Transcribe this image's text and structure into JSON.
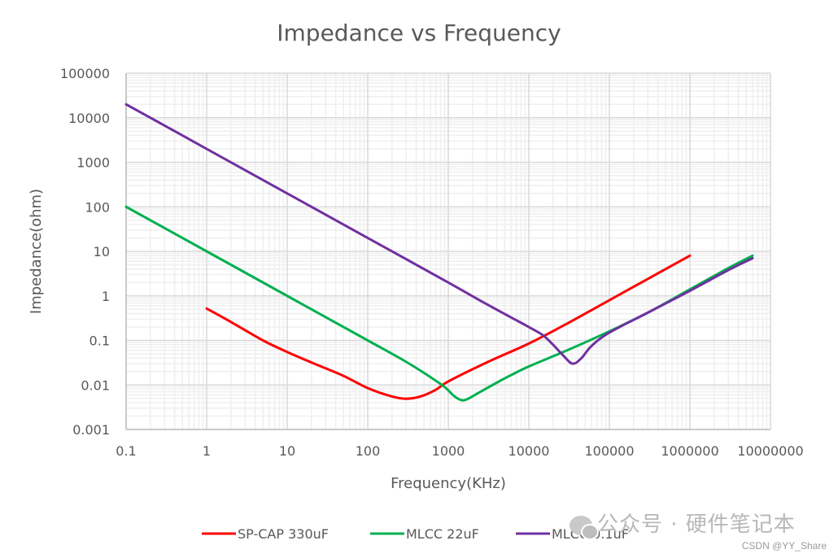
{
  "chart_data": {
    "type": "line",
    "title": "Impedance vs Frequency",
    "xlabel": "Frequency(KHz)",
    "ylabel": "Impedance(ohm)",
    "xscale": "log",
    "yscale": "log",
    "xlim": [
      0.1,
      10000000
    ],
    "ylim": [
      0.001,
      100000
    ],
    "x_ticks": [
      "0.1",
      "1",
      "10",
      "100",
      "1000",
      "10000",
      "100000",
      "1000000",
      "10000000"
    ],
    "y_ticks": [
      "100000",
      "10000",
      "1000",
      "100",
      "10",
      "1",
      "0.1",
      "0.01",
      "0.001"
    ],
    "grid": true,
    "legend_position": "bottom",
    "series": [
      {
        "name": "SP-CAP 330uF",
        "color": "#ff0000",
        "points": [
          [
            1,
            0.52
          ],
          [
            2,
            0.26
          ],
          [
            5,
            0.1
          ],
          [
            10,
            0.055
          ],
          [
            20,
            0.032
          ],
          [
            50,
            0.016
          ],
          [
            100,
            0.0085
          ],
          [
            200,
            0.0055
          ],
          [
            300,
            0.0049
          ],
          [
            450,
            0.0055
          ],
          [
            700,
            0.0078
          ],
          [
            1000,
            0.012
          ],
          [
            3000,
            0.032
          ],
          [
            10000,
            0.085
          ],
          [
            30000,
            0.24
          ],
          [
            100000,
            0.8
          ],
          [
            300000,
            2.4
          ],
          [
            1000000,
            8
          ]
        ]
      },
      {
        "name": "MLCC 22uF",
        "color": "#00b050",
        "points": [
          [
            0.1,
            100
          ],
          [
            1,
            10
          ],
          [
            10,
            1
          ],
          [
            100,
            0.1
          ],
          [
            300,
            0.033
          ],
          [
            600,
            0.015
          ],
          [
            900,
            0.009
          ],
          [
            1200,
            0.0055
          ],
          [
            1500,
            0.0045
          ],
          [
            1800,
            0.005
          ],
          [
            2500,
            0.007
          ],
          [
            5000,
            0.014
          ],
          [
            10000,
            0.026
          ],
          [
            30000,
            0.06
          ],
          [
            100000,
            0.16
          ],
          [
            300000,
            0.42
          ],
          [
            1000000,
            1.4
          ],
          [
            3000000,
            4.2
          ],
          [
            6000000,
            8
          ]
        ]
      },
      {
        "name": "MLCC 0.1uF",
        "color": "#7030a0",
        "points": [
          [
            0.1,
            20000
          ],
          [
            1,
            2000
          ],
          [
            10,
            200
          ],
          [
            100,
            20
          ],
          [
            1000,
            2
          ],
          [
            3000,
            0.65
          ],
          [
            10000,
            0.2
          ],
          [
            15000,
            0.13
          ],
          [
            20000,
            0.08
          ],
          [
            27000,
            0.045
          ],
          [
            35000,
            0.03
          ],
          [
            45000,
            0.04
          ],
          [
            60000,
            0.075
          ],
          [
            100000,
            0.15
          ],
          [
            300000,
            0.42
          ],
          [
            1000000,
            1.3
          ],
          [
            3000000,
            3.8
          ],
          [
            6000000,
            7
          ]
        ]
      }
    ]
  },
  "watermark": {
    "text": "公众号 · 硬件笔记本",
    "credit": "CSDN @YY_Share"
  }
}
